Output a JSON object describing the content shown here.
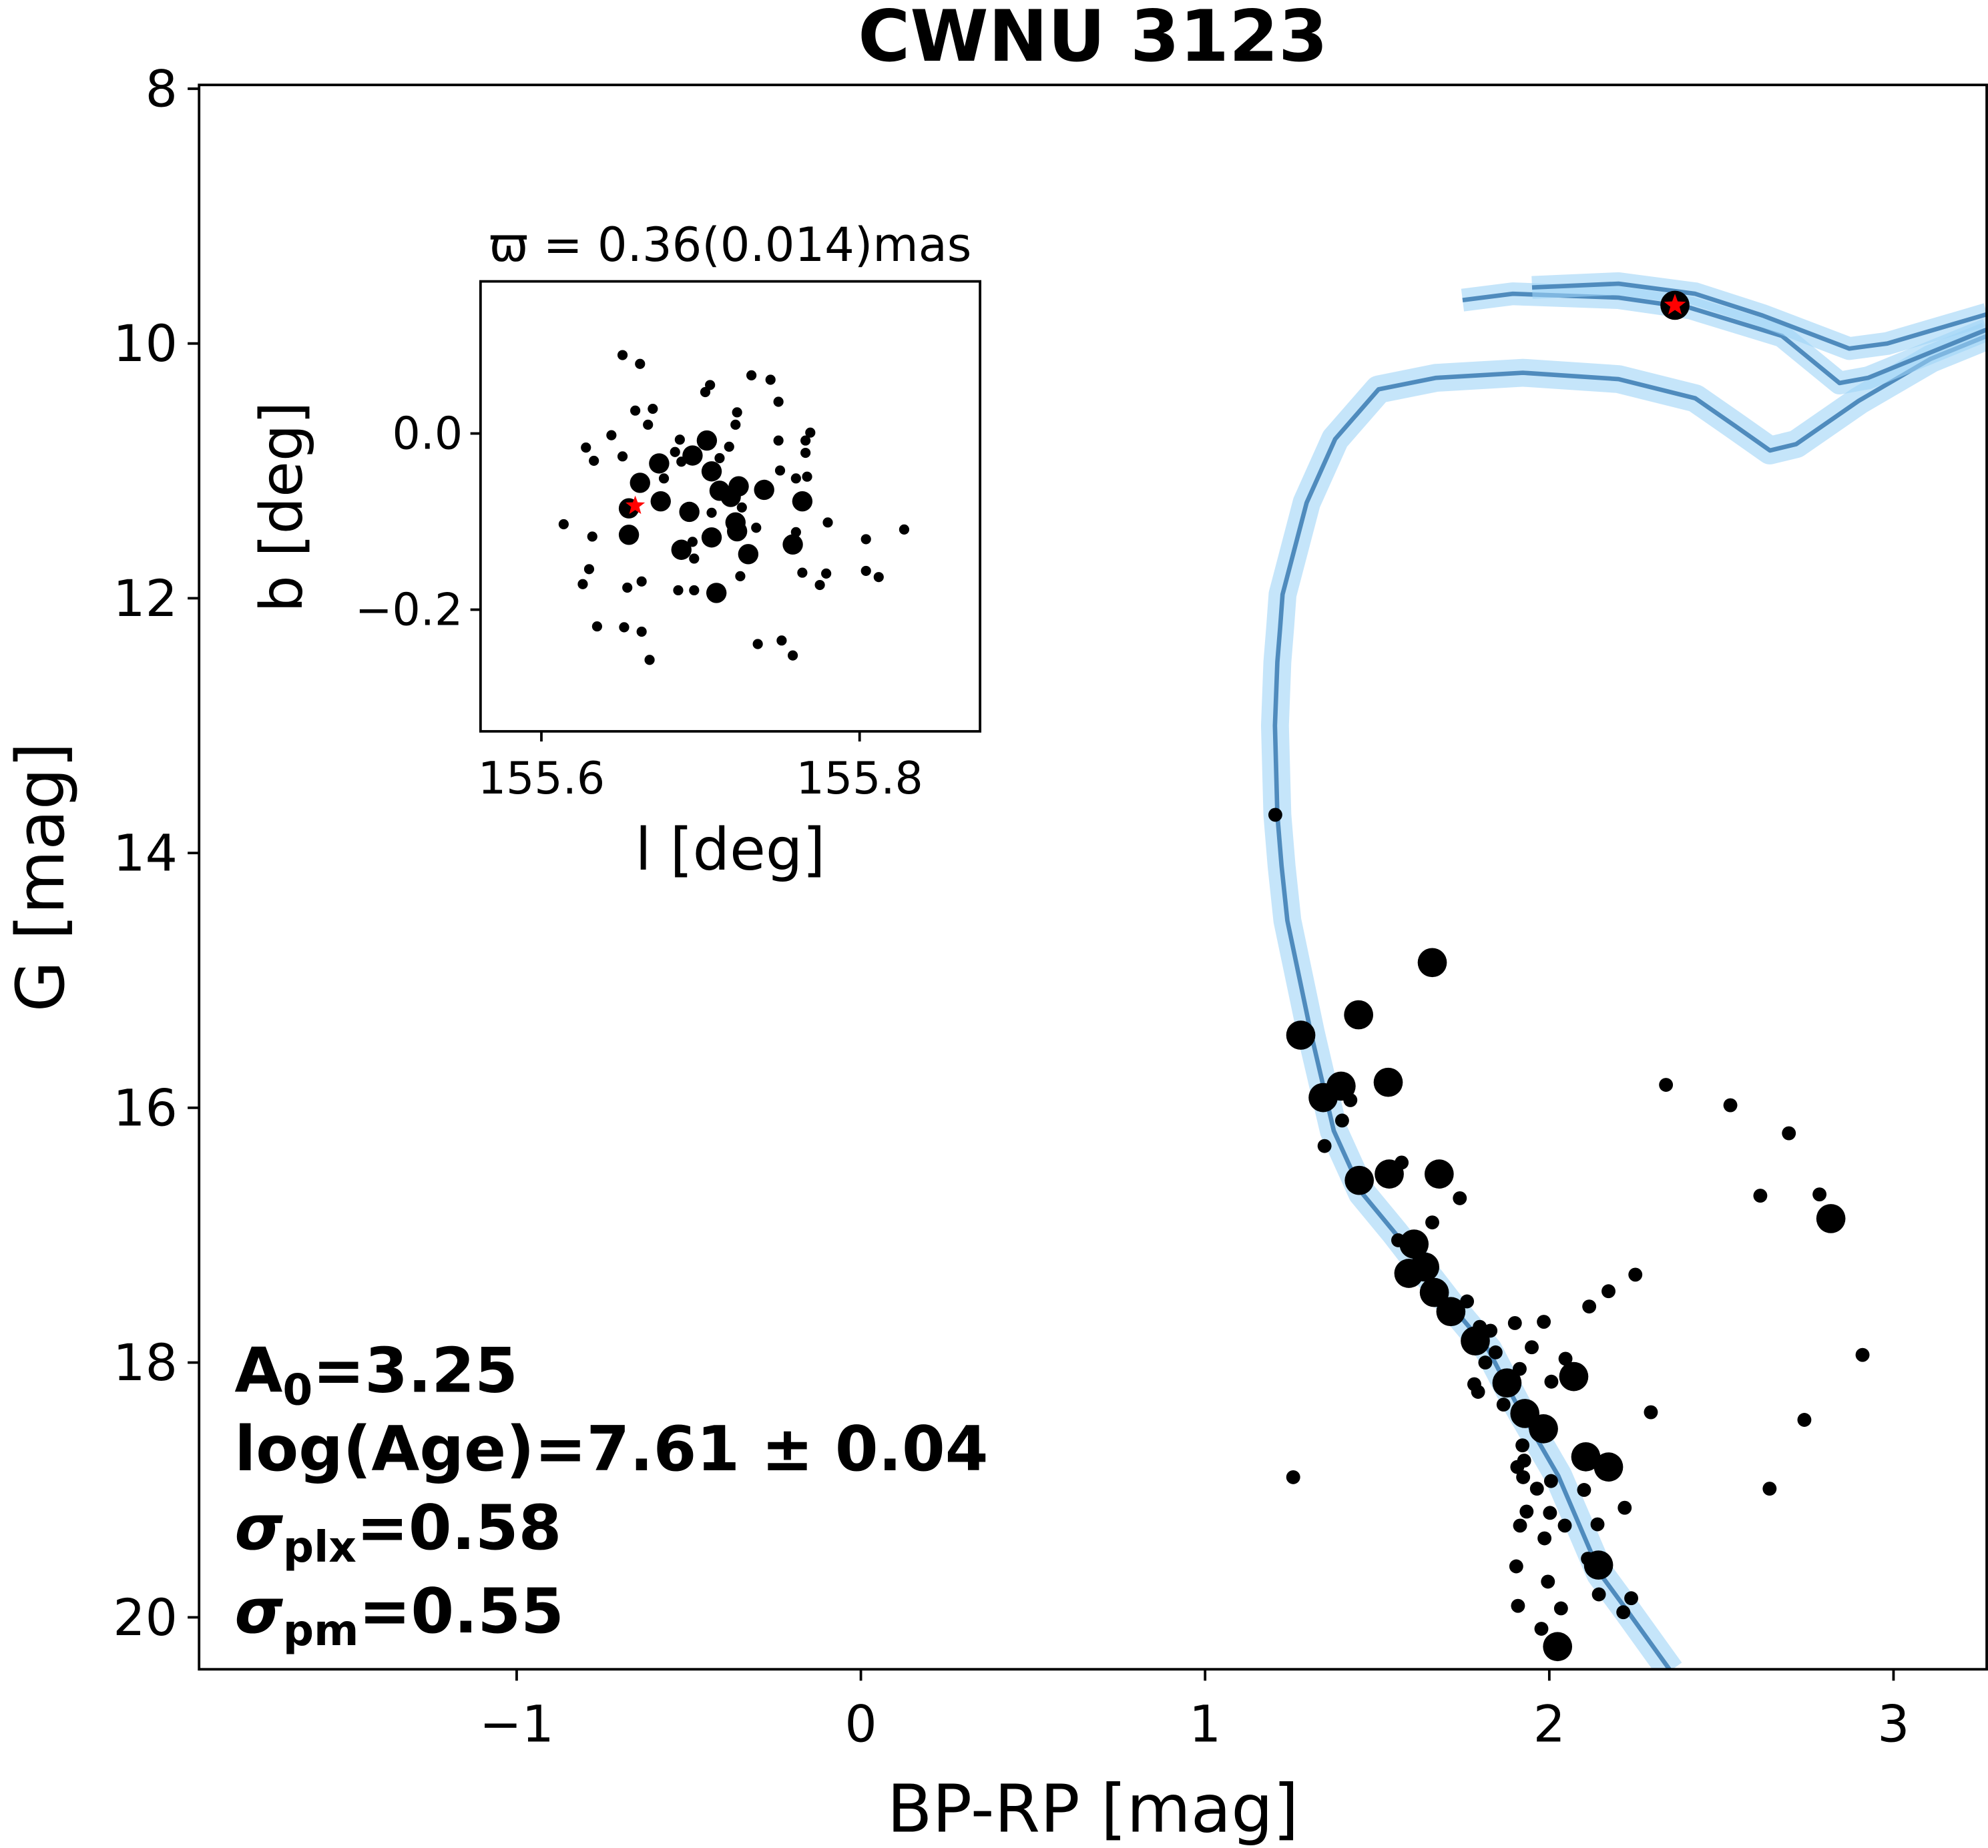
{
  "chart_data": [
    {
      "type": "scatter",
      "title": "CWNU 3123",
      "xlabel": "BP-RP [mag]",
      "ylabel": "G [mag]",
      "xlim": [
        -1.92,
        3.27
      ],
      "ylim": [
        20.41,
        7.97
      ],
      "y_inverted": true,
      "grid": false,
      "xticks": [
        "−1",
        "0",
        "1",
        "2",
        "3"
      ],
      "xtick_values": [
        -1,
        0,
        1,
        2,
        3
      ],
      "yticks": [
        "8",
        "10",
        "12",
        "14",
        "16",
        "18",
        "20"
      ],
      "ytick_values": [
        8,
        10,
        12,
        14,
        16,
        18,
        20
      ],
      "colors": {
        "points": "#000000",
        "isochrone": "#4f8bbd",
        "band": "#9fd3f7",
        "highlight": "#ff0000"
      },
      "points_note_columns": [
        "bp_rp",
        "g",
        "large"
      ],
      "points": [
        [
          1.66,
          14.86,
          1
        ],
        [
          1.446,
          15.27,
          1
        ],
        [
          1.278,
          15.43,
          1
        ],
        [
          1.532,
          15.8,
          1
        ],
        [
          1.395,
          15.83,
          1
        ],
        [
          1.343,
          15.92,
          1
        ],
        [
          1.422,
          15.94,
          0
        ],
        [
          1.398,
          16.1,
          0
        ],
        [
          1.347,
          16.3,
          0
        ],
        [
          2.339,
          15.82,
          0
        ],
        [
          2.526,
          15.98,
          0
        ],
        [
          2.696,
          16.2,
          0
        ],
        [
          1.448,
          16.57,
          1
        ],
        [
          1.535,
          16.52,
          1
        ],
        [
          1.571,
          16.43,
          0
        ],
        [
          1.68,
          16.52,
          1
        ],
        [
          1.74,
          16.71,
          0
        ],
        [
          2.613,
          16.69,
          0
        ],
        [
          2.785,
          16.68,
          0
        ],
        [
          2.818,
          16.87,
          1
        ],
        [
          1.66,
          16.9,
          0
        ],
        [
          1.561,
          17.04,
          0
        ],
        [
          1.607,
          17.07,
          1
        ],
        [
          1.638,
          17.25,
          1
        ],
        [
          1.592,
          17.3,
          1
        ],
        [
          1.666,
          17.45,
          1
        ],
        [
          1.714,
          17.6,
          1
        ],
        [
          1.761,
          17.52,
          0
        ],
        [
          2.25,
          17.31,
          0
        ],
        [
          2.172,
          17.44,
          0
        ],
        [
          2.116,
          17.56,
          0
        ],
        [
          1.9,
          17.69,
          0
        ],
        [
          1.984,
          17.68,
          0
        ],
        [
          1.798,
          17.72,
          0
        ],
        [
          1.829,
          17.75,
          0
        ],
        [
          1.785,
          17.83,
          1
        ],
        [
          1.949,
          17.88,
          0
        ],
        [
          1.844,
          17.92,
          0
        ],
        [
          1.814,
          18.0,
          0
        ],
        [
          2.047,
          17.97,
          0
        ],
        [
          2.071,
          18.11,
          1
        ],
        [
          1.914,
          18.05,
          0
        ],
        [
          1.877,
          18.16,
          1
        ],
        [
          2.006,
          18.15,
          0
        ],
        [
          1.782,
          18.17,
          0
        ],
        [
          1.793,
          18.23,
          0
        ],
        [
          1.867,
          18.33,
          0
        ],
        [
          1.929,
          18.4,
          1
        ],
        [
          1.983,
          18.52,
          1
        ],
        [
          2.295,
          18.39,
          0
        ],
        [
          2.91,
          17.94,
          0
        ],
        [
          2.741,
          18.45,
          0
        ],
        [
          1.922,
          18.65,
          0
        ],
        [
          1.927,
          18.77,
          0
        ],
        [
          1.907,
          18.82,
          0
        ],
        [
          1.924,
          18.9,
          0
        ],
        [
          2.106,
          18.74,
          1
        ],
        [
          2.172,
          18.82,
          1
        ],
        [
          2.005,
          18.93,
          0
        ],
        [
          1.964,
          18.99,
          0
        ],
        [
          2.101,
          19.0,
          0
        ],
        [
          1.256,
          18.9,
          0
        ],
        [
          2.64,
          18.99,
          0
        ],
        [
          2.219,
          19.14,
          0
        ],
        [
          1.934,
          19.17,
          0
        ],
        [
          2.002,
          19.18,
          0
        ],
        [
          1.915,
          19.28,
          0
        ],
        [
          2.045,
          19.28,
          0
        ],
        [
          2.14,
          19.27,
          0
        ],
        [
          1.986,
          19.38,
          0
        ],
        [
          2.143,
          19.59,
          1
        ],
        [
          2.112,
          19.54,
          0
        ],
        [
          1.904,
          19.6,
          0
        ],
        [
          1.996,
          19.72,
          0
        ],
        [
          2.144,
          19.82,
          0
        ],
        [
          2.238,
          19.85,
          0
        ],
        [
          2.215,
          19.96,
          0
        ],
        [
          1.909,
          19.91,
          0
        ],
        [
          2.034,
          19.93,
          0
        ],
        [
          1.977,
          20.09,
          0
        ],
        [
          2.024,
          20.23,
          1
        ],
        [
          1.204,
          13.7,
          0
        ],
        [
          2.365,
          9.7,
          1
        ]
      ],
      "highlight_star": [
        2.365,
        9.7
      ],
      "isochrone": [
        [
          [
            2.352,
            20.42
          ],
          [
            2.23,
            19.96
          ],
          [
            2.148,
            19.66
          ],
          [
            2.026,
            18.89
          ],
          [
            1.904,
            18.32
          ],
          [
            1.823,
            17.9
          ],
          [
            1.714,
            17.55
          ],
          [
            1.551,
            16.98
          ],
          [
            1.456,
            16.67
          ],
          [
            1.374,
            16.18
          ],
          [
            1.307,
            15.41
          ],
          [
            1.239,
            14.53
          ],
          [
            1.222,
            14.1
          ],
          [
            1.21,
            13.7
          ],
          [
            1.203,
            13.0
          ],
          [
            1.21,
            12.5
          ],
          [
            1.218,
            12.23
          ],
          [
            1.225,
            11.97
          ],
          [
            1.295,
            11.25
          ],
          [
            1.378,
            10.75
          ],
          [
            1.504,
            10.36
          ],
          [
            1.671,
            10.27
          ],
          [
            1.923,
            10.23
          ],
          [
            2.201,
            10.28
          ],
          [
            2.424,
            10.43
          ],
          [
            2.536,
            10.64
          ],
          [
            2.641,
            10.84
          ],
          [
            2.717,
            10.79
          ],
          [
            2.899,
            10.45
          ],
          [
            3.108,
            10.12
          ],
          [
            3.272,
            9.94
          ]
        ],
        [
          [
            1.748,
            9.66
          ],
          [
            1.894,
            9.61
          ],
          [
            2.201,
            9.64
          ],
          [
            2.41,
            9.72
          ],
          [
            2.676,
            9.94
          ],
          [
            2.843,
            10.31
          ],
          [
            2.926,
            10.27
          ],
          [
            3.272,
            9.89
          ]
        ],
        [
          [
            1.95,
            9.56
          ],
          [
            2.201,
            9.53
          ],
          [
            2.424,
            9.61
          ],
          [
            2.619,
            9.78
          ],
          [
            2.871,
            10.04
          ],
          [
            2.982,
            10.0
          ],
          [
            3.272,
            9.77
          ]
        ]
      ],
      "annotations": [
        {
          "main": "A",
          "sub": "0",
          "rest": "=3.25"
        },
        {
          "main": "log(Age)=7.61 ± 0.04",
          "sub": "",
          "rest": ""
        },
        {
          "main": "σ",
          "sub": "plx",
          "rest": "=0.58"
        },
        {
          "main": "σ",
          "sub": "pm",
          "rest": "=0.55"
        }
      ]
    },
    {
      "type": "scatter",
      "title": "ϖ = 0.36(0.014)mas",
      "xlabel": "l [deg]",
      "ylabel": "b [deg]",
      "xlim": [
        155.562,
        155.876
      ],
      "ylim": [
        -0.338,
        0.173
      ],
      "grid": false,
      "xticks": [
        "155.6",
        "155.8"
      ],
      "xtick_values": [
        155.6,
        155.8
      ],
      "yticks": [
        "0.0",
        "−0.2"
      ],
      "ytick_values": [
        0.0,
        -0.2
      ],
      "points": [
        [
          155.651,
          0.089,
          0
        ],
        [
          155.662,
          0.079,
          0
        ],
        [
          155.732,
          0.066,
          0
        ],
        [
          155.744,
          0.061,
          0
        ],
        [
          155.706,
          0.055,
          0
        ],
        [
          155.703,
          0.047,
          0
        ],
        [
          155.749,
          0.036,
          0
        ],
        [
          155.659,
          0.026,
          0
        ],
        [
          155.67,
          0.028,
          0
        ],
        [
          155.723,
          0.024,
          0
        ],
        [
          155.667,
          0.01,
          0
        ],
        [
          155.722,
          0.01,
          0
        ],
        [
          155.644,
          -0.002,
          0
        ],
        [
          155.769,
          0.001,
          0
        ],
        [
          155.628,
          -0.016,
          0
        ],
        [
          155.687,
          -0.007,
          0
        ],
        [
          155.749,
          -0.008,
          0
        ],
        [
          155.766,
          -0.008,
          0
        ],
        [
          155.704,
          -0.008,
          1
        ],
        [
          155.651,
          -0.026,
          0
        ],
        [
          155.633,
          -0.031,
          0
        ],
        [
          155.718,
          -0.015,
          0
        ],
        [
          155.766,
          -0.022,
          0
        ],
        [
          155.684,
          -0.021,
          0
        ],
        [
          155.695,
          -0.025,
          1
        ],
        [
          155.674,
          -0.034,
          1
        ],
        [
          155.712,
          -0.028,
          0
        ],
        [
          155.688,
          -0.032,
          0
        ],
        [
          155.707,
          -0.043,
          1
        ],
        [
          155.75,
          -0.042,
          0
        ],
        [
          155.76,
          -0.051,
          0
        ],
        [
          155.767,
          -0.049,
          0
        ],
        [
          155.677,
          -0.051,
          0
        ],
        [
          155.662,
          -0.056,
          1
        ],
        [
          155.724,
          -0.06,
          1
        ],
        [
          155.712,
          -0.065,
          1
        ],
        [
          155.74,
          -0.064,
          1
        ],
        [
          155.719,
          -0.072,
          1
        ],
        [
          155.675,
          -0.077,
          1
        ],
        [
          155.764,
          -0.077,
          1
        ],
        [
          155.655,
          -0.085,
          1
        ],
        [
          155.693,
          -0.089,
          1
        ],
        [
          155.707,
          -0.09,
          0
        ],
        [
          155.726,
          -0.084,
          0
        ],
        [
          155.614,
          -0.103,
          0
        ],
        [
          155.78,
          -0.101,
          0
        ],
        [
          155.828,
          -0.109,
          0
        ],
        [
          155.722,
          -0.101,
          1
        ],
        [
          155.735,
          -0.107,
          0
        ],
        [
          155.632,
          -0.117,
          0
        ],
        [
          155.655,
          -0.115,
          1
        ],
        [
          155.76,
          -0.112,
          0
        ],
        [
          155.804,
          -0.12,
          0
        ],
        [
          155.707,
          -0.118,
          1
        ],
        [
          155.723,
          -0.111,
          1
        ],
        [
          155.758,
          -0.126,
          1
        ],
        [
          155.695,
          -0.123,
          0
        ],
        [
          155.688,
          -0.132,
          1
        ],
        [
          155.73,
          -0.137,
          1
        ],
        [
          155.696,
          -0.142,
          0
        ],
        [
          155.63,
          -0.154,
          0
        ],
        [
          155.725,
          -0.162,
          0
        ],
        [
          155.764,
          -0.158,
          0
        ],
        [
          155.779,
          -0.159,
          0
        ],
        [
          155.804,
          -0.156,
          0
        ],
        [
          155.812,
          -0.163,
          0
        ],
        [
          155.663,
          -0.168,
          0
        ],
        [
          155.626,
          -0.171,
          0
        ],
        [
          155.654,
          -0.175,
          0
        ],
        [
          155.775,
          -0.172,
          0
        ],
        [
          155.686,
          -0.178,
          0
        ],
        [
          155.696,
          -0.178,
          0
        ],
        [
          155.71,
          -0.181,
          1
        ],
        [
          155.635,
          -0.219,
          0
        ],
        [
          155.652,
          -0.22,
          0
        ],
        [
          155.663,
          -0.225,
          0
        ],
        [
          155.736,
          -0.239,
          0
        ],
        [
          155.751,
          -0.235,
          0
        ],
        [
          155.758,
          -0.252,
          0
        ],
        [
          155.668,
          -0.257,
          0
        ]
      ],
      "highlight_star": [
        155.659,
        -0.082
      ]
    }
  ]
}
